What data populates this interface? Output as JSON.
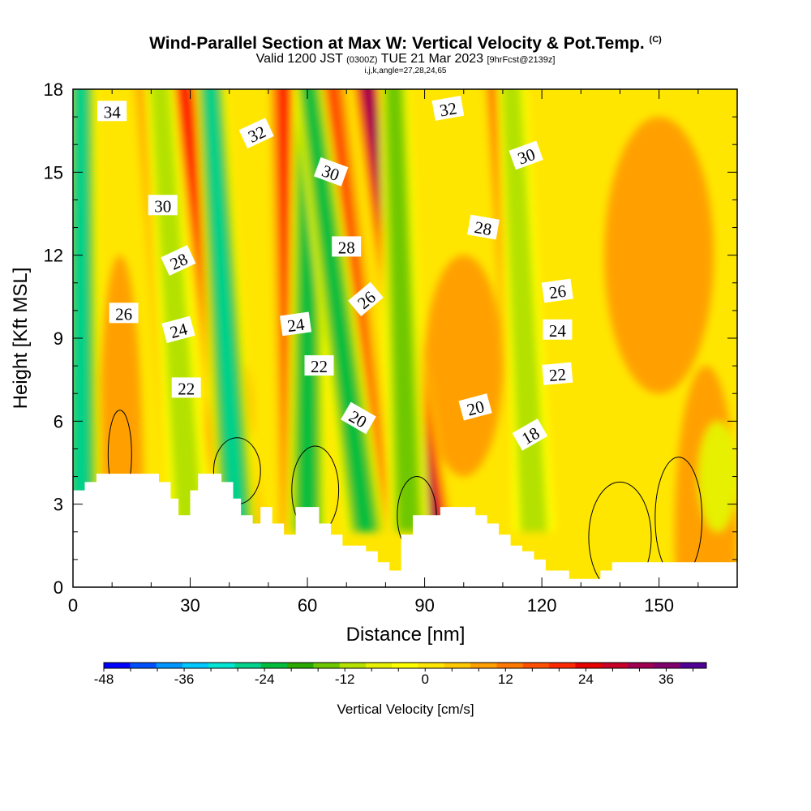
{
  "title": "Wind-Parallel Section at Max W: Vertical Velocity & Pot.Temp.",
  "title_mark": "(C)",
  "subtitle": {
    "valid": "Valid 1200 JST",
    "zulu": "(0300Z)",
    "date": "TUE 21 Mar 2023",
    "fcst": "[9hrFcst@2139z]",
    "indices": "i,j,k,angle=27,28,24,65"
  },
  "chart_data": {
    "type": "heatmap",
    "xlabel": "Distance [nm]",
    "ylabel": "Height [Kft MSL]",
    "xlim": [
      0,
      170
    ],
    "ylim": [
      0,
      18
    ],
    "x_ticks": [
      0,
      30,
      60,
      90,
      120,
      150
    ],
    "y_ticks": [
      0,
      3,
      6,
      9,
      12,
      15,
      18
    ],
    "x_tick_labels": [
      "0",
      "30",
      "60",
      "90",
      "120",
      "150"
    ],
    "y_tick_labels": [
      "0",
      "3",
      "6",
      "9",
      "12",
      "15",
      "18"
    ],
    "colorbar": {
      "title": "Vertical Velocity [cm/s]",
      "range": [
        -48,
        42
      ],
      "step": 4,
      "tick_values": [
        -48,
        -36,
        -24,
        -12,
        0,
        12,
        24,
        36
      ],
      "tick_labels": [
        "-48",
        "-36",
        "-24",
        "-12",
        "0",
        "12",
        "24",
        "36"
      ],
      "colors": [
        "#0000ff",
        "#0050ff",
        "#0096ff",
        "#00c8ff",
        "#00e6d2",
        "#00d28c",
        "#00be3c",
        "#28aa00",
        "#6ec800",
        "#b4e100",
        "#e6f000",
        "#ffff00",
        "#ffe600",
        "#ffc800",
        "#ffa000",
        "#ff7800",
        "#ff5000",
        "#ff2800",
        "#e60000",
        "#c80028",
        "#a00050",
        "#80006e",
        "#500096"
      ]
    },
    "updraft_bands": [
      {
        "x_bottom": 58,
        "x_top": 54,
        "w": 22
      },
      {
        "x_bottom": 44,
        "x_top": 28,
        "w": 24
      },
      {
        "x_bottom": 78,
        "x_top": 66,
        "w": 20
      },
      {
        "x_bottom": 92,
        "x_top": 75,
        "w": 34
      },
      {
        "x_bottom": 118,
        "x_top": 109,
        "w": 24
      },
      {
        "x_bottom": 30,
        "x_top": 19,
        "w": 10
      }
    ],
    "downdraft_bands": [
      {
        "x_bottom": 2,
        "x_top": 2,
        "w": -30
      },
      {
        "x_bottom": 42,
        "x_top": 35,
        "w": -28
      },
      {
        "x_bottom": 60,
        "x_top": 60,
        "w": -22
      },
      {
        "x_bottom": 75,
        "x_top": 60,
        "w": -26
      },
      {
        "x_bottom": 86,
        "x_top": 82,
        "w": -18
      },
      {
        "x_bottom": 118,
        "x_top": 112,
        "w": -12
      },
      {
        "x_bottom": 30,
        "x_top": 22,
        "w": -14
      }
    ],
    "terrain": [
      [
        0,
        3.5
      ],
      [
        3,
        3.5
      ],
      [
        3,
        3.8
      ],
      [
        6,
        3.8
      ],
      [
        6,
        4.1
      ],
      [
        22,
        4.1
      ],
      [
        22,
        3.8
      ],
      [
        25,
        3.8
      ],
      [
        25,
        3.2
      ],
      [
        27,
        3.2
      ],
      [
        27,
        2.6
      ],
      [
        30,
        2.6
      ],
      [
        30,
        3.5
      ],
      [
        32,
        3.5
      ],
      [
        32,
        4.1
      ],
      [
        38,
        4.1
      ],
      [
        38,
        3.8
      ],
      [
        41,
        3.8
      ],
      [
        41,
        3.2
      ],
      [
        43,
        3.2
      ],
      [
        43,
        2.6
      ],
      [
        46,
        2.6
      ],
      [
        46,
        2.3
      ],
      [
        48,
        2.3
      ],
      [
        48,
        2.9
      ],
      [
        51,
        2.9
      ],
      [
        51,
        2.3
      ],
      [
        54,
        2.3
      ],
      [
        54,
        1.9
      ],
      [
        57,
        1.9
      ],
      [
        57,
        2.9
      ],
      [
        63,
        2.9
      ],
      [
        63,
        2.3
      ],
      [
        66,
        2.3
      ],
      [
        66,
        1.9
      ],
      [
        69,
        1.9
      ],
      [
        69,
        1.5
      ],
      [
        75,
        1.5
      ],
      [
        75,
        1.3
      ],
      [
        78,
        1.3
      ],
      [
        78,
        0.9
      ],
      [
        81,
        0.9
      ],
      [
        81,
        0.6
      ],
      [
        84,
        0.6
      ],
      [
        84,
        1.9
      ],
      [
        87,
        1.9
      ],
      [
        87,
        2.6
      ],
      [
        94,
        2.6
      ],
      [
        94,
        2.9
      ],
      [
        103,
        2.9
      ],
      [
        103,
        2.6
      ],
      [
        106,
        2.6
      ],
      [
        106,
        2.3
      ],
      [
        109,
        2.3
      ],
      [
        109,
        1.9
      ],
      [
        112,
        1.9
      ],
      [
        112,
        1.5
      ],
      [
        115,
        1.5
      ],
      [
        115,
        1.3
      ],
      [
        118,
        1.3
      ],
      [
        118,
        1.0
      ],
      [
        121,
        1.0
      ],
      [
        121,
        0.6
      ],
      [
        127,
        0.6
      ],
      [
        127,
        0.3
      ],
      [
        135,
        0.3
      ],
      [
        135,
        0.6
      ],
      [
        138,
        0.6
      ],
      [
        138,
        0.9
      ],
      [
        170,
        0.9
      ]
    ],
    "theta_contours": [
      {
        "level": 18,
        "label": "18"
      },
      {
        "level": 20,
        "label": "20"
      },
      {
        "level": 22,
        "label": "22"
      },
      {
        "level": 24,
        "label": "24"
      },
      {
        "level": 26,
        "label": "26"
      },
      {
        "level": 28,
        "label": "28"
      },
      {
        "level": 30,
        "label": "30"
      },
      {
        "level": 32,
        "label": "32"
      },
      {
        "level": 34,
        "label": "34"
      }
    ],
    "contour_labels": [
      {
        "text": "34",
        "x": 10,
        "y": 17.2,
        "angle": 0
      },
      {
        "text": "32",
        "x": 47,
        "y": 16.4,
        "angle": -25
      },
      {
        "text": "32",
        "x": 96,
        "y": 17.3,
        "angle": -10
      },
      {
        "text": "30",
        "x": 66,
        "y": 15.0,
        "angle": 20
      },
      {
        "text": "30",
        "x": 116,
        "y": 15.6,
        "angle": -20
      },
      {
        "text": "30",
        "x": 23,
        "y": 13.8,
        "angle": 0
      },
      {
        "text": "28",
        "x": 70,
        "y": 12.3,
        "angle": 0
      },
      {
        "text": "28",
        "x": 105,
        "y": 13.0,
        "angle": 10
      },
      {
        "text": "28",
        "x": 27,
        "y": 11.8,
        "angle": -25
      },
      {
        "text": "26",
        "x": 13,
        "y": 9.9,
        "angle": 0
      },
      {
        "text": "26",
        "x": 75,
        "y": 10.4,
        "angle": -40
      },
      {
        "text": "26",
        "x": 124,
        "y": 10.7,
        "angle": -8
      },
      {
        "text": "24",
        "x": 27,
        "y": 9.3,
        "angle": -15
      },
      {
        "text": "24",
        "x": 57,
        "y": 9.5,
        "angle": -8
      },
      {
        "text": "24",
        "x": 124,
        "y": 9.3,
        "angle": 0
      },
      {
        "text": "22",
        "x": 29,
        "y": 7.2,
        "angle": 0
      },
      {
        "text": "22",
        "x": 63,
        "y": 8.0,
        "angle": 0
      },
      {
        "text": "22",
        "x": 124,
        "y": 7.7,
        "angle": -5
      },
      {
        "text": "20",
        "x": 73,
        "y": 6.1,
        "angle": 30
      },
      {
        "text": "20",
        "x": 103,
        "y": 6.5,
        "angle": -15
      },
      {
        "text": "18",
        "x": 117,
        "y": 5.5,
        "angle": -30
      }
    ]
  }
}
